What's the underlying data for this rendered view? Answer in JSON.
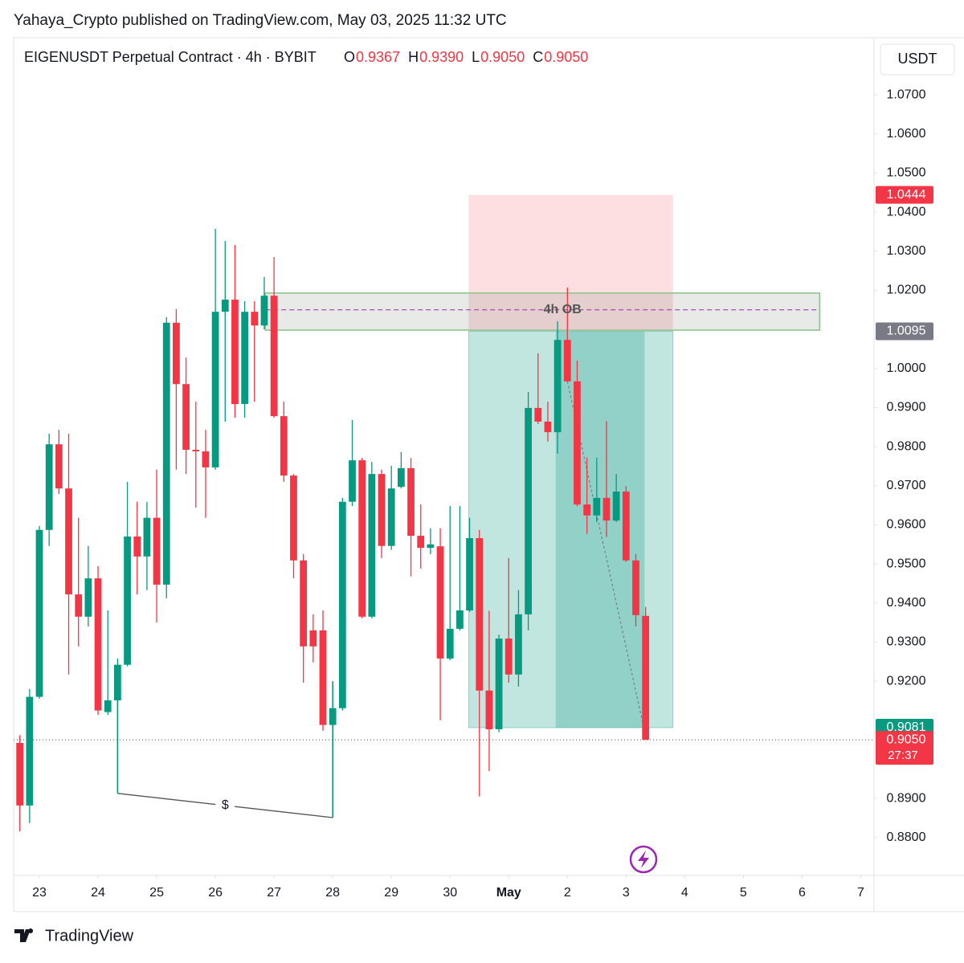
{
  "header": {
    "published": "Yahaya_Crypto published on TradingView.com, May 03, 2025 11:32 UTC",
    "symbol": "EIGENUSDT Perpetual Contract · 4h · BYBIT",
    "ohlc": [
      {
        "key": "O",
        "text": "0.9367"
      },
      {
        "key": "H",
        "text": "0.9390"
      },
      {
        "key": "L",
        "text": "0.9050"
      },
      {
        "key": "C",
        "text": "0.9050"
      }
    ],
    "currency": "USDT",
    "logo": "TradingView"
  },
  "chart_data": {
    "type": "candlestick",
    "candles": {
      "x": [
        -2,
        -1,
        0,
        1,
        2,
        3,
        4,
        5,
        6,
        7,
        8,
        9,
        10,
        11,
        12,
        13,
        14,
        15,
        16,
        17,
        18,
        19,
        20,
        21,
        22,
        23,
        24,
        25,
        26,
        27,
        28,
        29,
        30,
        31,
        32,
        33,
        34,
        35,
        36,
        37,
        38,
        39,
        40,
        41,
        42,
        43,
        44,
        45,
        46,
        47,
        48,
        49,
        50,
        51,
        52,
        53,
        54,
        55,
        56,
        57,
        58,
        59,
        60,
        61,
        62
      ],
      "open": [
        0.9042,
        0.8882,
        0.916,
        0.9587,
        0.9806,
        0.9693,
        0.9422,
        0.9365,
        0.9463,
        0.9121,
        0.9151,
        0.9242,
        0.957,
        0.9519,
        0.9618,
        0.9447,
        1.0117,
        0.996,
        0.9792,
        0.9788,
        0.9747,
        1.0145,
        1.0176,
        0.9909,
        1.0145,
        1.011,
        1.0186,
        0.9878,
        0.9726,
        0.9509,
        0.933,
        0.933,
        0.9088,
        0.9131,
        0.9659,
        0.9765,
        0.9365,
        0.973,
        0.9546,
        0.9697,
        0.9745,
        0.9572,
        0.9541,
        0.9545,
        0.9258,
        0.9334,
        0.9381,
        0.9566,
        0.9176,
        0.9077,
        0.9309,
        0.9217,
        0.9371,
        0.9899,
        0.9864,
        0.9837,
        1.0073,
        0.9967,
        0.9652,
        0.9624,
        0.9669,
        0.9611,
        0.9685,
        0.9509,
        0.9367
      ],
      "high": [
        0.9062,
        0.918,
        0.9597,
        0.9833,
        0.9843,
        0.9833,
        0.9618,
        0.9546,
        0.9494,
        0.9381,
        0.9258,
        0.971,
        0.9659,
        0.9659,
        0.9741,
        1.0131,
        1.0152,
        1.0028,
        0.9915,
        0.9843,
        1.0357,
        1.0326,
        1.0316,
        1.0172,
        1.0172,
        1.0234,
        1.0285,
        0.9915,
        0.973,
        0.9525,
        0.9371,
        0.9381,
        0.9186,
        0.9669,
        0.9868,
        0.9771,
        0.9761,
        0.9741,
        0.9751,
        0.9786,
        0.9771,
        0.9652,
        0.9591,
        0.9591,
        0.9648,
        0.9648,
        0.9618,
        0.9587,
        0.938,
        0.9319,
        0.9515,
        0.9433,
        0.994,
        1.0039,
        0.9915,
        1.0121,
        1.0207,
        1.002,
        0.9772,
        0.9772,
        0.9865,
        0.973,
        0.9699,
        0.9525,
        0.939
      ],
      "low": [
        0.8816,
        0.8837,
        0.9155,
        0.9546,
        0.9679,
        0.9217,
        0.9289,
        0.934,
        0.9114,
        0.9114,
        0.8913,
        0.9238,
        0.9422,
        0.9433,
        0.935,
        0.9412,
        0.9741,
        0.973,
        0.9644,
        0.9618,
        0.9741,
        0.9864,
        0.9874,
        0.9874,
        0.9915,
        1.01,
        0.9874,
        0.971,
        0.9463,
        0.9196,
        0.9248,
        0.9073,
        0.8851,
        0.9125,
        0.9648,
        0.9361,
        0.9361,
        0.9515,
        0.9536,
        0.9693,
        0.9468,
        0.9488,
        0.9525,
        0.91,
        0.9254,
        0.933,
        0.9377,
        0.8905,
        0.897,
        0.9069,
        0.9196,
        0.9186,
        0.933,
        0.9858,
        0.9813,
        0.9782,
        0.9967,
        0.9648,
        0.9577,
        0.9607,
        0.9569,
        0.9607,
        0.9505,
        0.934,
        0.905
      ],
      "close": [
        0.8882,
        0.916,
        0.9587,
        0.9806,
        0.9693,
        0.9422,
        0.9365,
        0.9463,
        0.9125,
        0.9151,
        0.9242,
        0.957,
        0.9519,
        0.9618,
        0.9447,
        1.0117,
        0.996,
        0.9792,
        0.9788,
        0.9747,
        1.0145,
        1.0176,
        0.9909,
        1.0145,
        1.011,
        1.0186,
        0.9878,
        0.9726,
        0.9509,
        0.9289,
        0.9289,
        0.9088,
        0.9131,
        0.9659,
        0.9765,
        0.9365,
        0.973,
        0.9546,
        0.9693,
        0.9745,
        0.9572,
        0.9541,
        0.955,
        0.9258,
        0.9334,
        0.9381,
        0.9566,
        0.9176,
        0.9077,
        0.9309,
        0.9217,
        0.9371,
        0.9899,
        0.9864,
        0.9837,
        1.0073,
        0.9967,
        0.9652,
        0.9624,
        0.9669,
        0.9611,
        0.9685,
        0.9509,
        0.9369,
        0.905
      ]
    },
    "up_color": "#089981",
    "down_color": "#f23645",
    "xlim": [
      -2.63,
      85.36
    ],
    "xticks": [
      {
        "value": 0,
        "label": "23"
      },
      {
        "value": 6,
        "label": "24"
      },
      {
        "value": 12,
        "label": "25"
      },
      {
        "value": 18,
        "label": "26"
      },
      {
        "value": 24,
        "label": "27"
      },
      {
        "value": 30,
        "label": "28"
      },
      {
        "value": 36,
        "label": "29"
      },
      {
        "value": 42,
        "label": "30"
      },
      {
        "value": 48,
        "label": "May"
      },
      {
        "value": 54,
        "label": "2"
      },
      {
        "value": 60,
        "label": "3"
      },
      {
        "value": 66,
        "label": "4"
      },
      {
        "value": 72,
        "label": "5"
      },
      {
        "value": 78,
        "label": "6"
      },
      {
        "value": 84,
        "label": "7"
      }
    ],
    "ylim": [
      0.8703,
      1.0846
    ],
    "yticks": [
      {
        "value": 1.07,
        "label": "1.0700"
      },
      {
        "value": 1.06,
        "label": "1.0600"
      },
      {
        "value": 1.05,
        "label": "1.0500"
      },
      {
        "value": 1.04,
        "label": "1.0400"
      },
      {
        "value": 1.03,
        "label": "1.0300"
      },
      {
        "value": 1.02,
        "label": "1.0200"
      },
      {
        "value": 1.0,
        "label": "1.0000"
      },
      {
        "value": 0.99,
        "label": "0.9900"
      },
      {
        "value": 0.98,
        "label": "0.9800"
      },
      {
        "value": 0.97,
        "label": "0.9700"
      },
      {
        "value": 0.96,
        "label": "0.9600"
      },
      {
        "value": 0.95,
        "label": "0.9500"
      },
      {
        "value": 0.94,
        "label": "0.9400"
      },
      {
        "value": 0.93,
        "label": "0.9300"
      },
      {
        "value": 0.92,
        "label": "0.9200"
      },
      {
        "value": 0.89,
        "label": "0.8900"
      },
      {
        "value": 0.88,
        "label": "0.8800"
      }
    ],
    "price_tags": [
      {
        "value": 1.0444,
        "label": "1.0444",
        "color": "#f23645"
      },
      {
        "value": 1.0095,
        "label": "1.0095",
        "color": "#787b86"
      },
      {
        "value": 0.9081,
        "label": "0.9081",
        "color": "#089981"
      },
      {
        "value": 0.905,
        "label": "0.9050",
        "color": "#f23645"
      }
    ],
    "countdown": "27:37",
    "position": {
      "stop": 1.0444,
      "entry": 1.0095,
      "target": 0.9081
    },
    "order_block": {
      "label": "4h OB",
      "top": 1.0193,
      "bottom": 1.0098,
      "mid": 1.015
    },
    "liquidity": {
      "label": "$",
      "left_low": 0.8913,
      "right_low": 0.8851
    }
  }
}
